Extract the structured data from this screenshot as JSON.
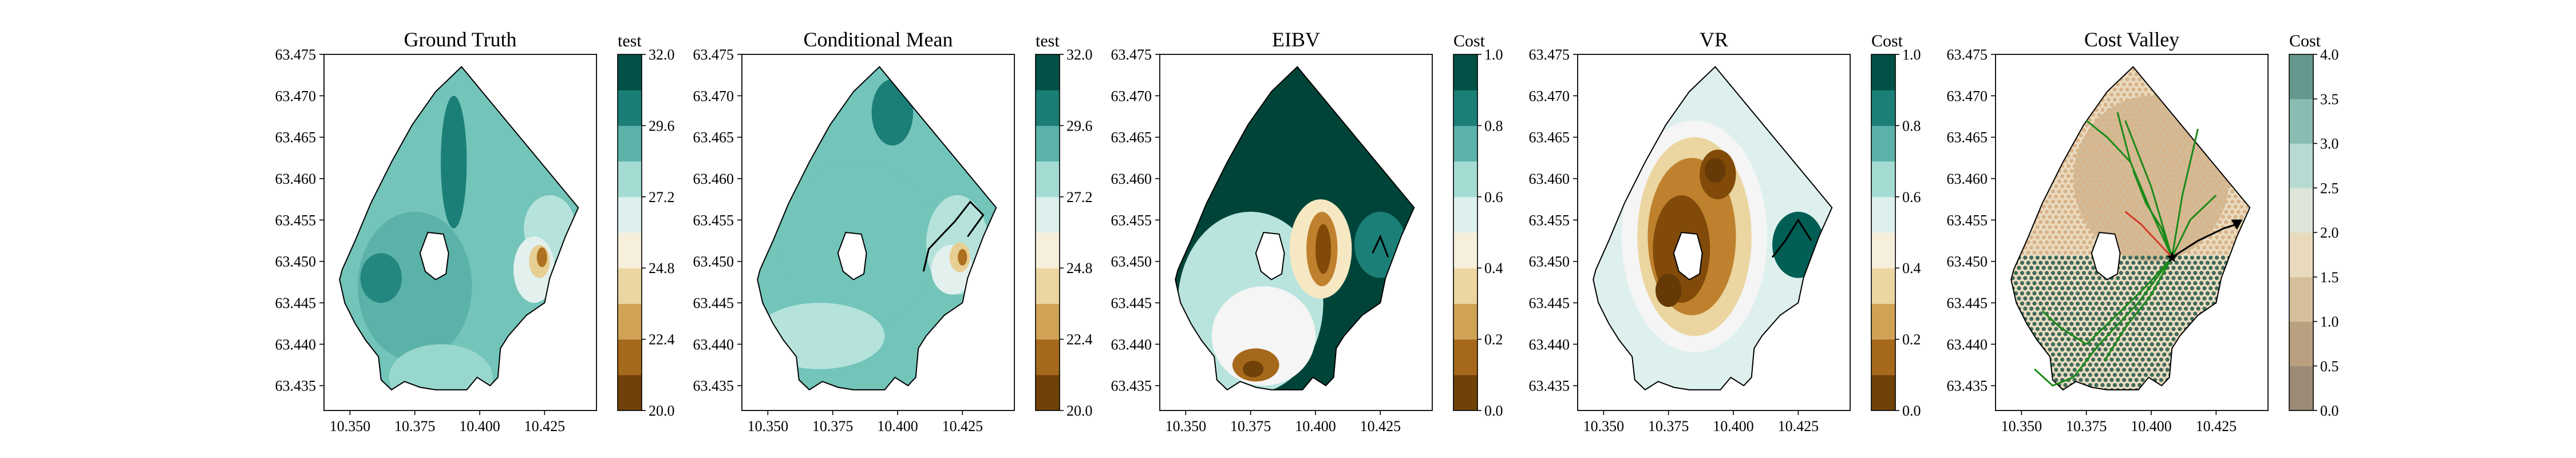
{
  "chart_data": [
    {
      "type": "contour",
      "title": "Ground Truth",
      "colorbar_label": "test",
      "colormap": "BrBG",
      "xlim": [
        10.34,
        10.445
      ],
      "ylim": [
        63.432,
        63.475
      ],
      "x_ticks": [
        "10.350",
        "10.375",
        "10.400",
        "10.425"
      ],
      "y_ticks": [
        "63.475",
        "63.470",
        "63.465",
        "63.460",
        "63.455",
        "63.450",
        "63.445",
        "63.440",
        "63.435"
      ],
      "colorbar_range": [
        20.0,
        32.0
      ],
      "colorbar_ticks": [
        "32.0",
        "29.6",
        "27.2",
        "24.8",
        "22.4",
        "20.0"
      ],
      "levels": [
        20.0,
        21.2,
        22.4,
        23.6,
        24.8,
        26.0,
        27.2,
        28.4,
        29.6,
        30.8,
        32.0
      ],
      "regions": [
        {
          "level": 29.0,
          "cx": 10.375,
          "cy": 63.447,
          "rx": 0.022,
          "ry": 0.009
        },
        {
          "level": 30.0,
          "cx": 10.362,
          "cy": 63.448,
          "rx": 0.008,
          "ry": 0.003
        },
        {
          "level": 30.2,
          "cx": 10.39,
          "cy": 63.462,
          "rx": 0.005,
          "ry": 0.008
        },
        {
          "level": 28.0,
          "cx": 10.385,
          "cy": 63.436,
          "rx": 0.02,
          "ry": 0.004
        },
        {
          "level": 27.5,
          "cx": 10.427,
          "cy": 63.454,
          "rx": 0.01,
          "ry": 0.004
        },
        {
          "level": 26.5,
          "cx": 10.421,
          "cy": 63.449,
          "rx": 0.008,
          "ry": 0.004
        },
        {
          "level": 24.0,
          "cx": 10.423,
          "cy": 63.45,
          "rx": 0.004,
          "ry": 0.002
        },
        {
          "level": 22.0,
          "cx": 10.424,
          "cy": 63.4505,
          "rx": 0.002,
          "ry": 0.0012
        }
      ],
      "paths": []
    },
    {
      "type": "contour",
      "title": "Conditional Mean",
      "colorbar_label": "test",
      "colormap": "BrBG",
      "xlim": [
        10.34,
        10.445
      ],
      "ylim": [
        63.432,
        63.475
      ],
      "x_ticks": [
        "10.350",
        "10.375",
        "10.400",
        "10.425"
      ],
      "y_ticks": [
        "63.475",
        "63.470",
        "63.465",
        "63.460",
        "63.455",
        "63.450",
        "63.445",
        "63.440",
        "63.435"
      ],
      "colorbar_range": [
        20.0,
        32.0
      ],
      "colorbar_ticks": [
        "32.0",
        "29.6",
        "27.2",
        "24.8",
        "22.4",
        "20.0"
      ],
      "levels": [
        20.0,
        21.2,
        22.4,
        23.6,
        24.8,
        26.0,
        27.2,
        28.4,
        29.6,
        30.8,
        32.0
      ],
      "regions": [
        {
          "level": 28.6,
          "cx": 10.385,
          "cy": 63.452,
          "rx": 0.03,
          "ry": 0.01
        },
        {
          "level": 30.2,
          "cx": 10.398,
          "cy": 63.468,
          "rx": 0.008,
          "ry": 0.004
        },
        {
          "level": 27.5,
          "cx": 10.37,
          "cy": 63.441,
          "rx": 0.025,
          "ry": 0.004
        },
        {
          "level": 27.5,
          "cx": 10.423,
          "cy": 63.452,
          "rx": 0.012,
          "ry": 0.006
        },
        {
          "level": 26.5,
          "cx": 10.421,
          "cy": 63.449,
          "rx": 0.008,
          "ry": 0.003
        },
        {
          "level": 24.0,
          "cx": 10.424,
          "cy": 63.4505,
          "rx": 0.004,
          "ry": 0.0018
        },
        {
          "level": 22.0,
          "cx": 10.425,
          "cy": 63.4505,
          "rx": 0.0018,
          "ry": 0.001
        }
      ],
      "paths": [
        {
          "color": "#000000",
          "x": [
            10.41,
            10.412,
            10.418,
            10.422,
            10.428,
            10.433,
            10.427
          ],
          "y": [
            63.4488,
            63.4515,
            63.4535,
            63.4548,
            63.4572,
            63.4556,
            63.453
          ]
        }
      ]
    },
    {
      "type": "contour",
      "title": "EIBV",
      "colorbar_label": "Cost",
      "colormap": "BrBG",
      "xlim": [
        10.34,
        10.445
      ],
      "ylim": [
        63.432,
        63.475
      ],
      "x_ticks": [
        "10.350",
        "10.375",
        "10.400",
        "10.425"
      ],
      "y_ticks": [
        "63.475",
        "63.470",
        "63.465",
        "63.460",
        "63.455",
        "63.450",
        "63.445",
        "63.440",
        "63.435"
      ],
      "colorbar_range": [
        0.0,
        1.0
      ],
      "colorbar_ticks": [
        "1.0",
        "0.8",
        "0.6",
        "0.4",
        "0.2",
        "0.0"
      ],
      "levels": [
        0.0,
        0.1,
        0.2,
        0.3,
        0.4,
        0.5,
        0.6,
        0.7,
        0.8,
        0.9,
        1.0
      ],
      "regions": [
        {
          "level": 0.62,
          "cx": 10.375,
          "cy": 63.445,
          "rx": 0.028,
          "ry": 0.011
        },
        {
          "level": 0.5,
          "cx": 10.38,
          "cy": 63.441,
          "rx": 0.02,
          "ry": 0.006
        },
        {
          "level": 0.15,
          "cx": 10.377,
          "cy": 63.4375,
          "rx": 0.009,
          "ry": 0.002
        },
        {
          "level": 0.05,
          "cx": 10.376,
          "cy": 63.437,
          "rx": 0.004,
          "ry": 0.001
        },
        {
          "level": 0.4,
          "cx": 10.402,
          "cy": 63.4515,
          "rx": 0.012,
          "ry": 0.006
        },
        {
          "level": 0.2,
          "cx": 10.4025,
          "cy": 63.4515,
          "rx": 0.006,
          "ry": 0.0045
        },
        {
          "level": 0.08,
          "cx": 10.403,
          "cy": 63.4515,
          "rx": 0.003,
          "ry": 0.003
        },
        {
          "level": 0.85,
          "cx": 10.425,
          "cy": 63.452,
          "rx": 0.01,
          "ry": 0.004
        }
      ],
      "paths": [
        {
          "color": "#000000",
          "x": [
            10.422,
            10.425,
            10.428
          ],
          "y": [
            63.451,
            63.453,
            63.4505
          ]
        }
      ]
    },
    {
      "type": "contour",
      "title": "VR",
      "colorbar_label": "Cost",
      "colormap": "BrBG",
      "xlim": [
        10.34,
        10.445
      ],
      "ylim": [
        63.432,
        63.475
      ],
      "x_ticks": [
        "10.350",
        "10.375",
        "10.400",
        "10.425"
      ],
      "y_ticks": [
        "63.475",
        "63.470",
        "63.465",
        "63.460",
        "63.455",
        "63.450",
        "63.445",
        "63.440",
        "63.435"
      ],
      "colorbar_range": [
        0.0,
        1.0
      ],
      "colorbar_ticks": [
        "1.0",
        "0.8",
        "0.6",
        "0.4",
        "0.2",
        "0.0"
      ],
      "levels": [
        0.0,
        0.1,
        0.2,
        0.3,
        0.4,
        0.5,
        0.6,
        0.7,
        0.8,
        0.9,
        1.0
      ],
      "regions": [
        {
          "level": 0.5,
          "cx": 10.385,
          "cy": 63.453,
          "rx": 0.028,
          "ry": 0.014
        },
        {
          "level": 0.35,
          "cx": 10.385,
          "cy": 63.453,
          "rx": 0.022,
          "ry": 0.012
        },
        {
          "level": 0.2,
          "cx": 10.384,
          "cy": 63.453,
          "rx": 0.017,
          "ry": 0.0095
        },
        {
          "level": 0.08,
          "cx": 10.38,
          "cy": 63.4515,
          "rx": 0.011,
          "ry": 0.0065
        },
        {
          "level": 0.08,
          "cx": 10.394,
          "cy": 63.4605,
          "rx": 0.007,
          "ry": 0.003
        },
        {
          "level": 0.03,
          "cx": 10.375,
          "cy": 63.4465,
          "rx": 0.005,
          "ry": 0.002
        },
        {
          "level": 0.03,
          "cx": 10.393,
          "cy": 63.461,
          "rx": 0.004,
          "ry": 0.0015
        },
        {
          "level": 0.92,
          "cx": 10.425,
          "cy": 63.452,
          "rx": 0.01,
          "ry": 0.004
        }
      ],
      "paths": [
        {
          "color": "#000000",
          "x": [
            10.415,
            10.42,
            10.425,
            10.43
          ],
          "y": [
            63.4505,
            63.4525,
            63.455,
            63.4525
          ]
        }
      ]
    },
    {
      "type": "contour",
      "title": "Cost Valley",
      "colorbar_label": "Cost",
      "colormap": "BrBG",
      "xlim": [
        10.34,
        10.445
      ],
      "ylim": [
        63.432,
        63.475
      ],
      "x_ticks": [
        "10.350",
        "10.375",
        "10.400",
        "10.425"
      ],
      "y_ticks": [
        "63.475",
        "63.470",
        "63.465",
        "63.460",
        "63.455",
        "63.450",
        "63.445",
        "63.440",
        "63.435"
      ],
      "colorbar_range": [
        0.0,
        4.0
      ],
      "colorbar_ticks": [
        "4.0",
        "3.5",
        "3.0",
        "2.5",
        "2.0",
        "1.5",
        "1.0",
        "0.5",
        "0.0"
      ],
      "levels": [
        0.0,
        0.5,
        1.0,
        1.5,
        2.0,
        2.5,
        3.0,
        3.5,
        4.0
      ],
      "regions": [
        {
          "level": 1.2,
          "cx": 10.4,
          "cy": 63.46,
          "rx": 0.03,
          "ry": 0.01
        },
        {
          "level": 1.8,
          "cx": 10.37,
          "cy": 63.443,
          "rx": 0.03,
          "ry": 0.007
        }
      ],
      "paths": [
        {
          "color": "#1a8a1a",
          "x": [
            10.408,
            10.4,
            10.392,
            10.387
          ],
          "y": [
            63.4505,
            63.456,
            63.462,
            63.468
          ]
        },
        {
          "color": "#1a8a1a",
          "x": [
            10.408,
            10.4,
            10.39
          ],
          "y": [
            63.4505,
            63.459,
            63.467
          ]
        },
        {
          "color": "#1a8a1a",
          "x": [
            10.408,
            10.412,
            10.418
          ],
          "y": [
            63.4505,
            63.458,
            63.466
          ]
        },
        {
          "color": "#1a8a1a",
          "x": [
            10.408,
            10.404,
            10.398,
            10.393
          ],
          "y": [
            63.4505,
            63.454,
            63.457,
            63.461
          ]
        },
        {
          "color": "#1a8a1a",
          "x": [
            10.408,
            10.415,
            10.425
          ],
          "y": [
            63.4505,
            63.455,
            63.458
          ]
        },
        {
          "color": "#1a8a1a",
          "x": [
            10.408,
            10.398,
            10.385,
            10.375
          ],
          "y": [
            63.4505,
            63.447,
            63.443,
            63.44
          ]
        },
        {
          "color": "#1a8a1a",
          "x": [
            10.408,
            10.395,
            10.38,
            10.37
          ],
          "y": [
            63.4505,
            63.445,
            63.44,
            63.436
          ]
        },
        {
          "color": "#1a8a1a",
          "x": [
            10.408,
            10.4,
            10.39,
            10.382
          ],
          "y": [
            63.4505,
            63.446,
            63.442,
            63.438
          ]
        },
        {
          "color": "#1a8a1a",
          "x": [
            10.392,
            10.383,
            10.375
          ],
          "y": [
            63.462,
            63.465,
            63.467
          ]
        },
        {
          "color": "#1a8a1a",
          "x": [
            10.375,
            10.365,
            10.358
          ],
          "y": [
            63.44,
            63.442,
            63.444
          ]
        },
        {
          "color": "#1a8a1a",
          "x": [
            10.37,
            10.362,
            10.355
          ],
          "y": [
            63.436,
            63.435,
            63.437
          ]
        },
        {
          "color": "#d23a2a",
          "x": [
            10.408,
            10.402,
            10.396,
            10.39
          ],
          "y": [
            63.4505,
            63.4525,
            63.4545,
            63.456
          ]
        },
        {
          "color": "#000000",
          "x": [
            10.408,
            10.418,
            10.428,
            10.433
          ],
          "y": [
            63.4505,
            63.4525,
            63.454,
            63.4545
          ]
        }
      ],
      "markers": [
        {
          "x": 10.408,
          "y": 63.4505,
          "symbol": "star",
          "color": "#000000"
        },
        {
          "x": 10.433,
          "y": 63.4545,
          "symbol": "triangle-down",
          "color": "#000000"
        }
      ]
    }
  ]
}
